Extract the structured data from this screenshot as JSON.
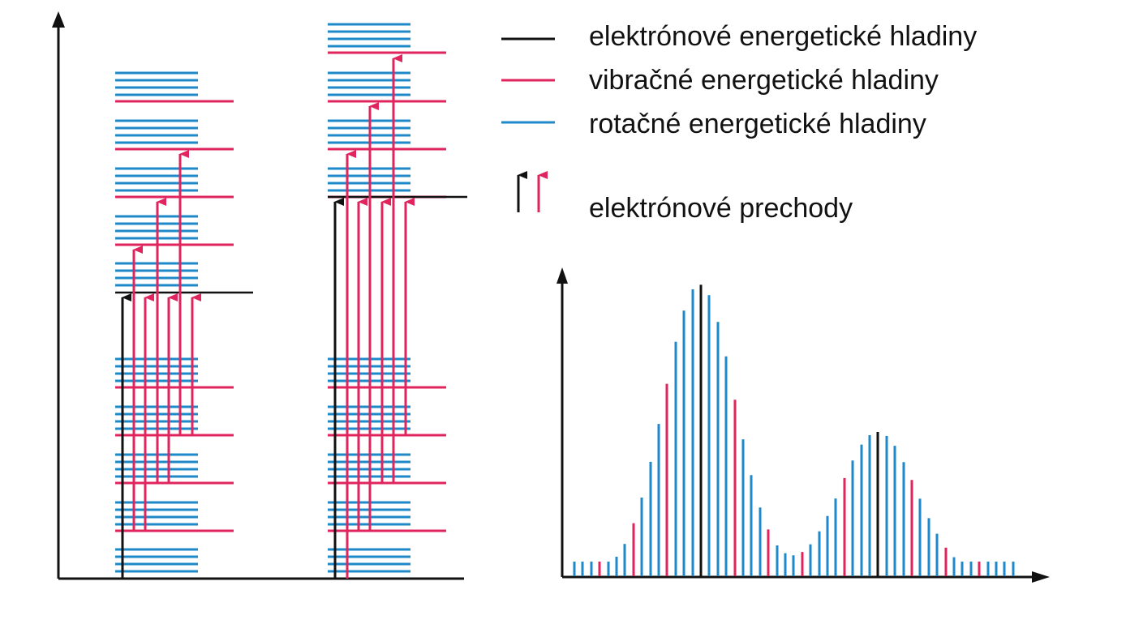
{
  "legend": {
    "electronic_levels": "elektrónové energetické hladiny",
    "vibrational_levels": "vibračné energetické hladiny",
    "rotational_levels": "rotačné energetické hladiny",
    "electronic_transitions": "elektrónové prechody"
  },
  "colors": {
    "electronic": "#111111",
    "vibrational": "#e0245e",
    "rotational": "#1e88c8",
    "axis": "#111111"
  },
  "icons": {
    "electronic_sample": "black-line-icon",
    "vibrational_sample": "red-line-icon",
    "rotational_sample": "blue-line-icon",
    "transition_arrows": "up-arrows-icon"
  },
  "spectrum": {
    "peaks": 2,
    "line_colors_pattern": "rotational lines with vibrational lines interspersed, electronic line at each peak"
  }
}
